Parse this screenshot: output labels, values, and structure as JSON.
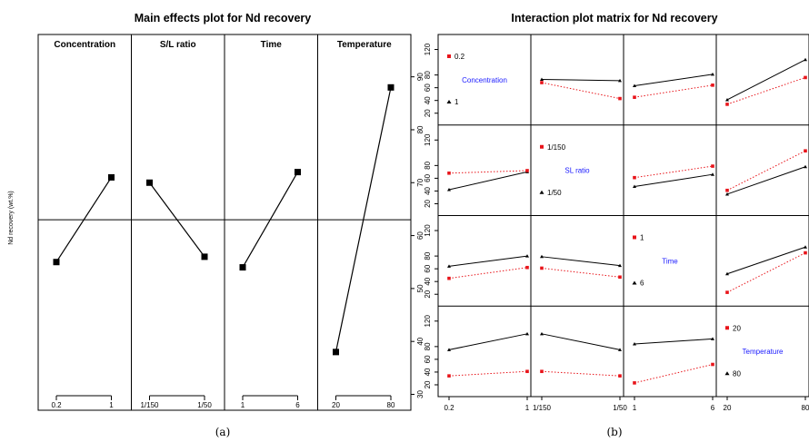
{
  "colors": {
    "black": "#000000",
    "red": "#e8141a",
    "blue": "#1a1aff"
  },
  "captions": {
    "left": "(a)",
    "right": "(b)"
  },
  "chart_data": [
    {
      "type": "line",
      "title": "Main effects plot for Nd recovery",
      "ylabel": "Nd recovery (wt.%)",
      "ylim": [
        27,
        98
      ],
      "yticks": [
        30,
        40,
        50,
        60,
        70,
        80,
        90
      ],
      "reference_line": 63,
      "panels": [
        {
          "name": "Concentration",
          "x": [
            "0.2",
            "1"
          ],
          "values": [
            55,
            71
          ]
        },
        {
          "name": "S/L ratio",
          "x": [
            "1/150",
            "1/50"
          ],
          "values": [
            70,
            56
          ]
        },
        {
          "name": "Time",
          "x": [
            "1",
            "6"
          ],
          "values": [
            54,
            72
          ]
        },
        {
          "name": "Temperature",
          "x": [
            "20",
            "80"
          ],
          "values": [
            38,
            88
          ]
        }
      ]
    },
    {
      "type": "line",
      "title": "Interaction plot matrix for Nd recovery",
      "ylim": [
        10,
        135
      ],
      "yticks": [
        20,
        40,
        60,
        80,
        120
      ],
      "factors": [
        {
          "name": "Concentration",
          "levels": [
            "0.2",
            "1"
          ]
        },
        {
          "name": "SL ratio",
          "levels": [
            "1/150",
            "1/50"
          ]
        },
        {
          "name": "Time",
          "levels": [
            "1",
            "6"
          ]
        },
        {
          "name": "Temperature",
          "levels": [
            "20",
            "80"
          ]
        }
      ],
      "cells": [
        {
          "row": 0,
          "col": 1,
          "red": [
            68,
            43
          ],
          "black": [
            73,
            71
          ]
        },
        {
          "row": 0,
          "col": 2,
          "red": [
            45,
            64
          ],
          "black": [
            63,
            81
          ]
        },
        {
          "row": 0,
          "col": 3,
          "red": [
            34,
            76
          ],
          "black": [
            41,
            104
          ]
        },
        {
          "row": 1,
          "col": 0,
          "red": [
            68,
            72
          ],
          "black": [
            42,
            70
          ]
        },
        {
          "row": 1,
          "col": 2,
          "red": [
            61,
            79
          ],
          "black": [
            47,
            66
          ]
        },
        {
          "row": 1,
          "col": 3,
          "red": [
            41,
            103
          ],
          "black": [
            35,
            78
          ]
        },
        {
          "row": 2,
          "col": 0,
          "red": [
            45,
            62
          ],
          "black": [
            64,
            80
          ]
        },
        {
          "row": 2,
          "col": 1,
          "red": [
            61,
            47
          ],
          "black": [
            79,
            65
          ]
        },
        {
          "row": 2,
          "col": 3,
          "red": [
            23,
            85
          ],
          "black": [
            52,
            94
          ]
        },
        {
          "row": 3,
          "col": 0,
          "red": [
            34,
            41
          ],
          "black": [
            75,
            100
          ]
        },
        {
          "row": 3,
          "col": 1,
          "red": [
            41,
            34
          ],
          "black": [
            100,
            75
          ]
        },
        {
          "row": 3,
          "col": 2,
          "red": [
            23,
            52
          ],
          "black": [
            84,
            92
          ]
        }
      ]
    }
  ]
}
